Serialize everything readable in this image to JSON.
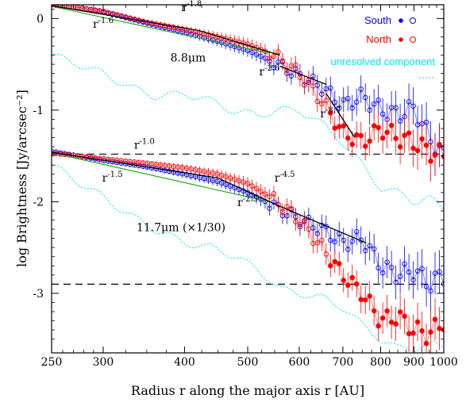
{
  "chart_data": {
    "type": "scatter",
    "xlabel": "Radius r along the major axis r [AU]",
    "ylabel": "log Brightness [Jy/arcsec⁻²]",
    "xscale": "log",
    "xlim": [
      250,
      1000
    ],
    "ylim": [
      -3.65,
      0.15
    ],
    "xticks": [
      250,
      300,
      400,
      500,
      600,
      700,
      800,
      900,
      1000
    ],
    "xtick_labels": [
      "250",
      "300",
      "400",
      "500",
      "600",
      "700",
      "800",
      "900",
      "1000"
    ],
    "yticks": [
      0,
      -1,
      -2,
      -3
    ],
    "ytick_labels": [
      "0",
      "-1",
      "-2",
      "-3"
    ],
    "legend": {
      "placement": "top-right",
      "entries": [
        {
          "name": "South",
          "color": "#0000ff"
        },
        {
          "name": "North",
          "color": "#ff0000"
        },
        {
          "name": "unresolved component",
          "color": "#00e5ee"
        }
      ]
    },
    "colors": {
      "south": "#0000ff",
      "north": "#ff0000",
      "unresolved": "#00e5ee",
      "fit": "#000000",
      "green": "#22aa22"
    },
    "hlines": [
      -1.48,
      -2.9
    ],
    "annotations": [
      {
        "base": "r",
        "exp": "-1.8",
        "x": 410,
        "y": 0.08
      },
      {
        "base": "r",
        "exp": "-1.6",
        "x": 300,
        "y": -0.1
      },
      {
        "base": "r",
        "exp": "-2.6",
        "x": 540,
        "y": -0.62
      },
      {
        "base": "r",
        "exp": "-8.7",
        "x": 670,
        "y": -1.08
      },
      {
        "base": "r",
        "exp": "-1.0",
        "x": 347,
        "y": -1.42
      },
      {
        "base": "r",
        "exp": "-1.5",
        "x": 310,
        "y": -1.78
      },
      {
        "base": "r",
        "exp": "-4.5",
        "x": 570,
        "y": -1.78
      },
      {
        "base": "r",
        "exp": "-2.5",
        "x": 500,
        "y": -2.05
      }
    ],
    "labels": [
      {
        "text": "8.8μm",
        "x": 405,
        "y": -0.47
      },
      {
        "text": "11.7μm (×1/30)",
        "x": 395,
        "y": -2.32
      }
    ],
    "series": [
      {
        "name": "South",
        "band": "8.8μm",
        "color": "#0000ff",
        "x": [
          250,
          275,
          300,
          350,
          400,
          450,
          500,
          550,
          600,
          650,
          700,
          750,
          800,
          850,
          900,
          950,
          1000
        ],
        "y": [
          0.15,
          0.12,
          0.07,
          -0.05,
          -0.15,
          -0.25,
          -0.35,
          -0.48,
          -0.63,
          -0.75,
          -0.95,
          -0.85,
          -1.0,
          -1.05,
          -0.98,
          -1.3,
          -1.5
        ]
      },
      {
        "name": "North",
        "band": "8.8μm",
        "color": "#ff0000",
        "x": [
          250,
          275,
          300,
          350,
          400,
          450,
          500,
          550,
          600,
          650,
          700,
          750,
          800,
          850,
          900,
          950,
          1000
        ],
        "y": [
          0.15,
          0.12,
          0.08,
          -0.04,
          -0.12,
          -0.2,
          -0.28,
          -0.4,
          -0.6,
          -0.9,
          -1.25,
          -1.35,
          -1.2,
          -1.3,
          -1.35,
          -1.45,
          -1.5
        ]
      },
      {
        "name": "South",
        "band": "11.7μm (×1/30)",
        "color": "#0000ff",
        "x": [
          250,
          275,
          300,
          350,
          400,
          450,
          500,
          550,
          600,
          650,
          700,
          750,
          800,
          850,
          900,
          950,
          1000
        ],
        "y": [
          -1.45,
          -1.5,
          -1.55,
          -1.62,
          -1.7,
          -1.78,
          -1.9,
          -2.05,
          -2.2,
          -2.3,
          -2.45,
          -2.4,
          -2.7,
          -2.8,
          -2.75,
          -2.9,
          -2.8
        ]
      },
      {
        "name": "North",
        "band": "11.7μm (×1/30)",
        "color": "#ff0000",
        "x": [
          250,
          275,
          300,
          350,
          400,
          450,
          500,
          550,
          600,
          650,
          700,
          750,
          800,
          850,
          900,
          950,
          1000
        ],
        "y": [
          -1.47,
          -1.5,
          -1.53,
          -1.58,
          -1.63,
          -1.7,
          -1.8,
          -1.98,
          -2.2,
          -2.5,
          -2.8,
          -3.0,
          -3.3,
          -3.25,
          -3.4,
          -3.45,
          -3.3
        ]
      },
      {
        "name": "unresolved component",
        "band": "8.8μm",
        "color": "#00e5ee",
        "x": [
          250,
          270,
          300,
          330,
          360,
          400,
          440,
          480,
          520,
          560,
          600,
          650,
          700,
          750,
          800,
          850,
          900,
          950,
          1000
        ],
        "y": [
          -0.4,
          -0.48,
          -0.6,
          -0.75,
          -0.85,
          -0.82,
          -0.9,
          -1.02,
          -1.05,
          -1.0,
          -1.0,
          -1.15,
          -1.35,
          -1.6,
          -1.85,
          -1.9,
          -2.0,
          -1.95,
          -2.1
        ]
      },
      {
        "name": "unresolved component",
        "band": "11.7μm (×1/30)",
        "color": "#00e5ee",
        "x": [
          250,
          270,
          300,
          330,
          360,
          400,
          440,
          480,
          520,
          560,
          600,
          650,
          700,
          750,
          800,
          850,
          900,
          950,
          1000
        ],
        "y": [
          -1.6,
          -1.75,
          -1.95,
          -2.15,
          -2.3,
          -2.45,
          -2.5,
          -2.6,
          -2.75,
          -2.95,
          -3.0,
          -3.05,
          -3.15,
          -3.35,
          -3.5,
          -3.6,
          -3.6,
          -3.55,
          -3.6
        ]
      }
    ],
    "fits": [
      {
        "label": "r^-1.6",
        "x": [
          250,
          420
        ],
        "y": [
          0.14,
          -0.13
        ]
      },
      {
        "label": "r^-1.8",
        "x": [
          420,
          560
        ],
        "y": [
          -0.13,
          -0.4
        ]
      },
      {
        "label": "r^-2.6",
        "x": [
          560,
          660
        ],
        "y": [
          -0.52,
          -0.72
        ]
      },
      {
        "label": "r^-8.7",
        "x": [
          660,
          730
        ],
        "y": [
          -0.82,
          -1.3
        ]
      },
      {
        "label": "r^-1.5",
        "x": [
          250,
          450
        ],
        "y": [
          -1.46,
          -1.74
        ]
      },
      {
        "label": "r^-4.5",
        "x": [
          450,
          560
        ],
        "y": [
          -1.74,
          -2.05
        ]
      },
      {
        "label": "r^-2.5",
        "x": [
          560,
          760
        ],
        "y": [
          -2.05,
          -2.45
        ]
      }
    ]
  }
}
